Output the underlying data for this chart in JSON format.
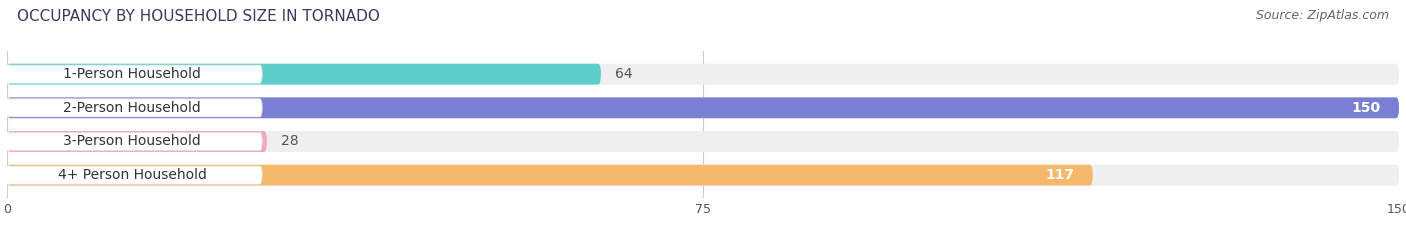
{
  "title": "OCCUPANCY BY HOUSEHOLD SIZE IN TORNADO",
  "source": "Source: ZipAtlas.com",
  "categories": [
    "1-Person Household",
    "2-Person Household",
    "3-Person Household",
    "4+ Person Household"
  ],
  "values": [
    64,
    150,
    28,
    117
  ],
  "bar_colors": [
    "#5ececa",
    "#7b7fd4",
    "#f4a7c0",
    "#f5b96e"
  ],
  "bg_colors": [
    "#efefef",
    "#efefef",
    "#efefef",
    "#efefef"
  ],
  "value_inside": [
    false,
    true,
    false,
    true
  ],
  "value_colors_inside": [
    "#ffffff",
    "#ffffff",
    "#ffffff",
    "#ffffff"
  ],
  "value_colors_outside": [
    "#555555",
    "#555555",
    "#555555",
    "#555555"
  ],
  "xlim": [
    0,
    150
  ],
  "xticks": [
    0,
    75,
    150
  ],
  "title_fontsize": 11,
  "source_fontsize": 9,
  "bar_label_fontsize": 10,
  "category_fontsize": 10,
  "figsize": [
    14.06,
    2.33
  ],
  "dpi": 100
}
